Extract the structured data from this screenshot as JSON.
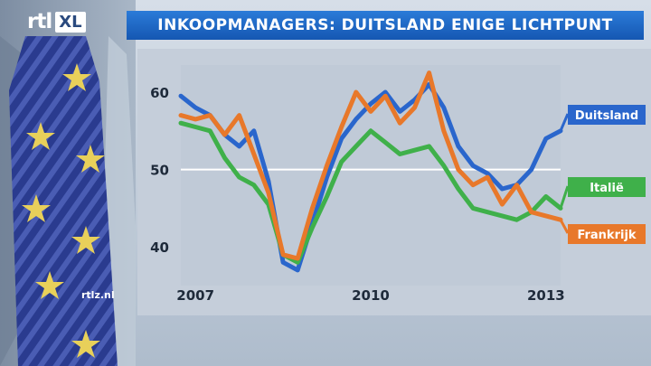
{
  "branding": {
    "logo_rtl": "rtl",
    "logo_xl": "XL",
    "watermark": "rtlz.nl"
  },
  "title": "INKOOPMANAGERS: DUITSLAND ENIGE LICHTPUNT",
  "colors": {
    "panel": "#c6cfda",
    "title_bar": "#1a66c2",
    "grid_line": "#ffffff"
  },
  "chart_data": {
    "type": "line",
    "title": "INKOOPMANAGERS: DUITSLAND ENIGE LICHTPUNT",
    "xlabel": "",
    "ylabel": "",
    "x_ticks": [
      "2007",
      "2010",
      "2013"
    ],
    "y_ticks": [
      40,
      50,
      60
    ],
    "xlim": [
      2006.75,
      2013.25
    ],
    "ylim": [
      35,
      63.5
    ],
    "reference_line": 50,
    "grid": false,
    "legend": "labels at right end of each line",
    "series": [
      {
        "name": "Duitsland",
        "color": "#2a66cc",
        "label_bg": "#2a66cc",
        "x": [
          2006.75,
          2007.0,
          2007.25,
          2007.5,
          2007.75,
          2008.0,
          2008.25,
          2008.5,
          2008.75,
          2009.0,
          2009.25,
          2009.5,
          2009.75,
          2010.0,
          2010.25,
          2010.5,
          2010.75,
          2011.0,
          2011.25,
          2011.5,
          2011.75,
          2012.0,
          2012.25,
          2012.5,
          2012.75,
          2013.0,
          2013.25
        ],
        "values": [
          59.5,
          58.0,
          57.0,
          54.5,
          53.0,
          55.0,
          48.5,
          38.0,
          37.0,
          43.0,
          49.0,
          54.0,
          56.5,
          58.5,
          60.0,
          57.5,
          59.0,
          61.0,
          58.0,
          53.0,
          50.5,
          49.5,
          47.5,
          48.0,
          50.0,
          54.0,
          55.0
        ]
      },
      {
        "name": "Italië",
        "color": "#3fb04a",
        "label_bg": "#3fb04a",
        "x": [
          2006.75,
          2007.0,
          2007.25,
          2007.5,
          2007.75,
          2008.0,
          2008.25,
          2008.5,
          2008.75,
          2009.0,
          2009.25,
          2009.5,
          2009.75,
          2010.0,
          2010.25,
          2010.5,
          2010.75,
          2011.0,
          2011.25,
          2011.5,
          2011.75,
          2012.0,
          2012.25,
          2012.5,
          2012.75,
          2013.0,
          2013.25
        ],
        "values": [
          56.0,
          55.5,
          55.0,
          51.5,
          49.0,
          48.0,
          45.5,
          39.0,
          38.0,
          42.5,
          46.5,
          51.0,
          53.0,
          55.0,
          53.5,
          52.0,
          52.5,
          53.0,
          50.5,
          47.5,
          45.0,
          44.5,
          44.0,
          43.5,
          44.5,
          46.5,
          45.0
        ]
      },
      {
        "name": "Frankrijk",
        "color": "#e8782a",
        "label_bg": "#e8782a",
        "x": [
          2006.75,
          2007.0,
          2007.25,
          2007.5,
          2007.75,
          2008.0,
          2008.25,
          2008.5,
          2008.75,
          2009.0,
          2009.25,
          2009.5,
          2009.75,
          2010.0,
          2010.25,
          2010.5,
          2010.75,
          2011.0,
          2011.25,
          2011.5,
          2011.75,
          2012.0,
          2012.25,
          2012.5,
          2012.75,
          2013.0,
          2013.25
        ],
        "values": [
          57.0,
          56.5,
          57.0,
          54.5,
          57.0,
          52.0,
          47.0,
          39.0,
          38.5,
          45.0,
          50.5,
          55.5,
          60.0,
          57.5,
          59.5,
          56.0,
          58.0,
          62.5,
          55.0,
          50.0,
          48.0,
          49.0,
          45.5,
          48.0,
          44.5,
          44.0,
          43.5
        ]
      }
    ]
  }
}
